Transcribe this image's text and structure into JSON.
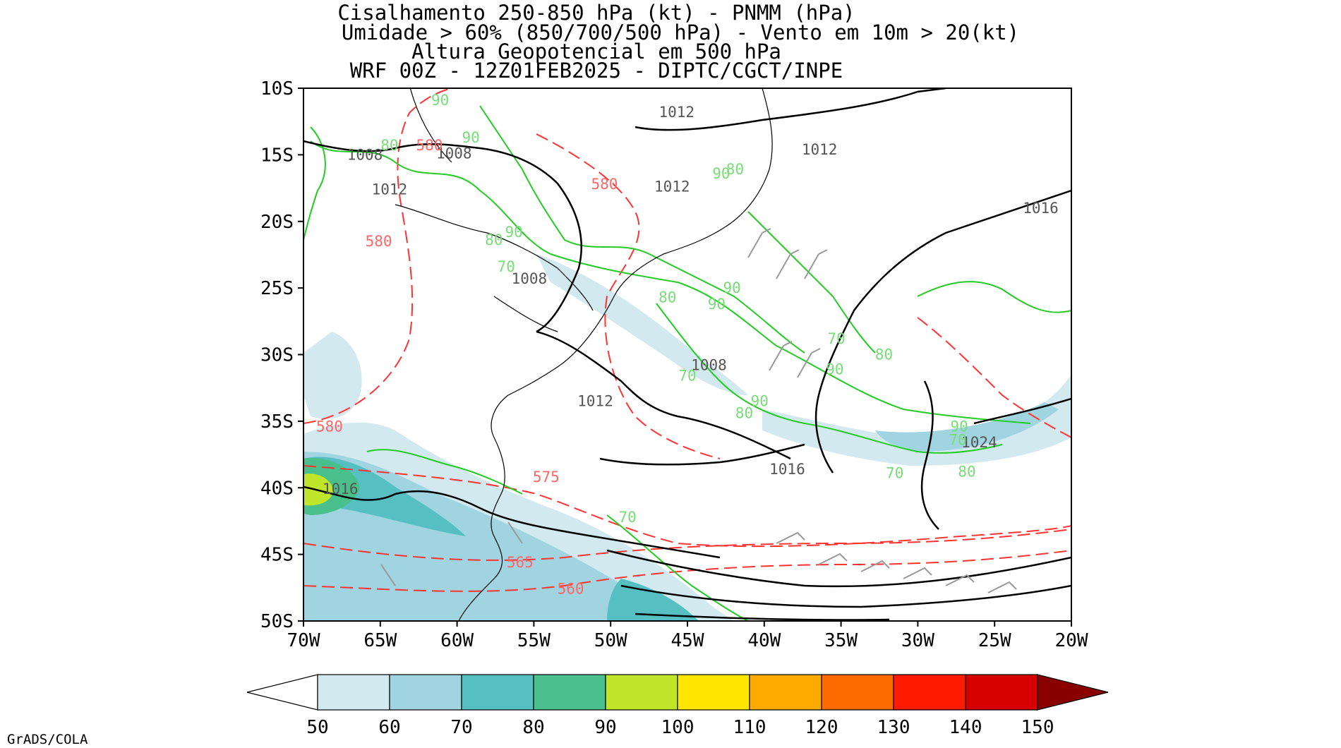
{
  "title": {
    "lines": [
      "Cisalhamento 250-850 hPa (kt) - PNMM (hPa)",
      "Umidade > 60% (850/700/500 hPa) - Vento em 10m > 20(kt)",
      "Altura Geopotencial em 500 hPa",
      "WRF 00Z - 12Z01FEB2025 - DIPTC/CGCT/INPE"
    ]
  },
  "map": {
    "lon_range": [
      -70,
      -20
    ],
    "lat_range": [
      -50,
      -10
    ],
    "lon_ticks": [
      "70W",
      "65W",
      "60W",
      "55W",
      "50W",
      "45W",
      "40W",
      "35W",
      "30W",
      "25W",
      "20W"
    ],
    "lat_ticks": [
      "10S",
      "15S",
      "20S",
      "25S",
      "30S",
      "35S",
      "40S",
      "45S",
      "50S"
    ]
  },
  "colorbar": {
    "labels": [
      "50",
      "60",
      "70",
      "80",
      "90",
      "100",
      "110",
      "120",
      "130",
      "140",
      "150"
    ],
    "colors": [
      "#d3e9f0",
      "#9fd4e0",
      "#55bfc2",
      "#49bf8b",
      "#c0e62c",
      "#ffe600",
      "#ffaa00",
      "#ff6a00",
      "#ff1a00",
      "#d60000",
      "#8a0000"
    ],
    "low_arrow_color": "#ffffff",
    "high_arrow_color": "#8a0000"
  },
  "contour_labels": {
    "pressure": [
      {
        "text": "1012",
        "lon": -45.7,
        "lat": -11.8
      },
      {
        "text": "1008",
        "lon": -66.0,
        "lat": -15.0
      },
      {
        "text": "1008",
        "lon": -60.2,
        "lat": -14.9
      },
      {
        "text": "1012",
        "lon": -36.4,
        "lat": -14.6
      },
      {
        "text": "1012",
        "lon": -64.4,
        "lat": -17.6
      },
      {
        "text": "1012",
        "lon": -46.0,
        "lat": -17.4
      },
      {
        "text": "1016",
        "lon": -22.0,
        "lat": -19.0
      },
      {
        "text": "1008",
        "lon": -55.3,
        "lat": -24.3
      },
      {
        "text": "1008",
        "lon": -43.6,
        "lat": -30.8
      },
      {
        "text": "1012",
        "lon": -51.0,
        "lat": -33.5
      },
      {
        "text": "1024",
        "lon": -26.0,
        "lat": -36.6
      },
      {
        "text": "1016",
        "lon": -38.5,
        "lat": -38.6
      },
      {
        "text": "1016",
        "lon": -67.6,
        "lat": -40.1
      }
    ],
    "height": [
      {
        "text": "580",
        "lon": -61.8,
        "lat": -14.3
      },
      {
        "text": "580",
        "lon": -50.4,
        "lat": -17.2
      },
      {
        "text": "580",
        "lon": -65.1,
        "lat": -21.5
      },
      {
        "text": "580",
        "lon": -68.3,
        "lat": -35.4
      },
      {
        "text": "575",
        "lon": -54.2,
        "lat": -39.2
      },
      {
        "text": "565",
        "lon": -55.9,
        "lat": -45.6
      },
      {
        "text": "560",
        "lon": -52.6,
        "lat": -47.6
      }
    ],
    "humidity": [
      {
        "text": "90",
        "lon": -61.1,
        "lat": -10.9
      },
      {
        "text": "90",
        "lon": -59.1,
        "lat": -13.7
      },
      {
        "text": "80",
        "lon": -64.4,
        "lat": -14.3
      },
      {
        "text": "90",
        "lon": -42.8,
        "lat": -16.4
      },
      {
        "text": "80",
        "lon": -41.9,
        "lat": -16.1
      },
      {
        "text": "80",
        "lon": -57.6,
        "lat": -21.4
      },
      {
        "text": "90",
        "lon": -56.3,
        "lat": -20.8
      },
      {
        "text": "70",
        "lon": -56.8,
        "lat": -23.4
      },
      {
        "text": "90",
        "lon": -42.1,
        "lat": -25.0
      },
      {
        "text": "80",
        "lon": -46.3,
        "lat": -25.7
      },
      {
        "text": "90",
        "lon": -43.1,
        "lat": -26.2
      },
      {
        "text": "70",
        "lon": -35.3,
        "lat": -28.8
      },
      {
        "text": "80",
        "lon": -32.2,
        "lat": -30.0
      },
      {
        "text": "90",
        "lon": -35.4,
        "lat": -31.1
      },
      {
        "text": "70",
        "lon": -45.0,
        "lat": -31.6
      },
      {
        "text": "90",
        "lon": -40.3,
        "lat": -33.5
      },
      {
        "text": "80",
        "lon": -41.3,
        "lat": -34.4
      },
      {
        "text": "90",
        "lon": -27.3,
        "lat": -35.4
      },
      {
        "text": "70",
        "lon": -27.4,
        "lat": -36.4
      },
      {
        "text": "70",
        "lon": -31.5,
        "lat": -38.9
      },
      {
        "text": "80",
        "lon": -26.8,
        "lat": -38.8
      },
      {
        "text": "70",
        "lon": -48.9,
        "lat": -42.2
      }
    ]
  }
}
